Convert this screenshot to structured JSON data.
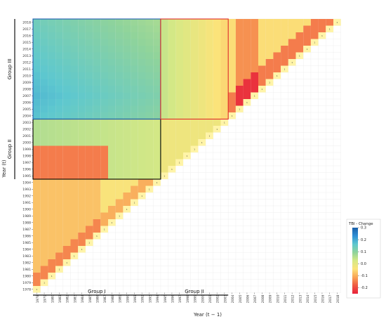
{
  "chart_data": {
    "type": "heatmap",
    "title": "",
    "xlabel": "Year (t − 1)",
    "ylabel": "Year (t)",
    "x_years": [
      1978,
      1979,
      1980,
      1981,
      1982,
      1983,
      1984,
      1985,
      1986,
      1987,
      1988,
      1989,
      1990,
      1991,
      1992,
      1993,
      1994,
      1995,
      1996,
      1997,
      1998,
      1999,
      2000,
      2001,
      2002,
      2003,
      2004,
      2005,
      2006,
      2007,
      2008,
      2009,
      2010,
      2011,
      2012,
      2013,
      2014,
      2015,
      2016,
      2017,
      2018
    ],
    "y_years": [
      2018,
      2017,
      2016,
      2015,
      2014,
      2013,
      2012,
      2011,
      2010,
      2009,
      2008,
      2007,
      2006,
      2005,
      2004,
      2003,
      2002,
      2001,
      2000,
      1999,
      1998,
      1997,
      1996,
      1995,
      1994,
      1993,
      1992,
      1991,
      1990,
      1989,
      1988,
      1987,
      1986,
      1985,
      1984,
      1983,
      1982,
      1981,
      1980,
      1979,
      1978
    ],
    "x_tick_labels": [
      "1978",
      "1979",
      "1980",
      "1981",
      "1982",
      "1983",
      "1984",
      "1985",
      "1986",
      "1987",
      "1988",
      "1989",
      "1990",
      "1991",
      "1992",
      "1993",
      "1994",
      "1995",
      "1996",
      "1997",
      "1998",
      "1999",
      "2000",
      "2001",
      "2002",
      "2003",
      "2004",
      "2005",
      "2006",
      "2007",
      "2008",
      "2009",
      "2010",
      "2011",
      "2012",
      "2013",
      "2014",
      "2015",
      "2016",
      "2017",
      "2018"
    ],
    "y_tick_labels": [
      "2018",
      "2017",
      "2016",
      "2015",
      "2014",
      "2013",
      "2012",
      "2011",
      "2010",
      "2009",
      "2008",
      "2007",
      "2006",
      "2005",
      "2004",
      "2003",
      "2002",
      "2001",
      "2000",
      "1999",
      "1998",
      "1997",
      "1996",
      "1995",
      "1994",
      "1993",
      "1992",
      "1991",
      "1990",
      "1989",
      "1988",
      "1987",
      "1986",
      "1985",
      "1984",
      "1983",
      "1982",
      "1981",
      "1980",
      "1979",
      "1978"
    ],
    "diagonal_value_label": "1",
    "legend": {
      "title": "TBI - Change",
      "placement": "right",
      "range": [
        -0.25,
        0.3
      ],
      "ticks": [
        "0.3",
        "0.2",
        "0.1",
        "0.0",
        "-0.1",
        "-0.2"
      ],
      "tick_values": [
        0.3,
        0.2,
        0.1,
        0.0,
        -0.1,
        -0.2
      ],
      "colors": [
        "#1a5fa8",
        "#2f8fd6",
        "#5ec8cf",
        "#8fd39b",
        "#d6e985",
        "#fbe37a",
        "#f9a456",
        "#ef5a43",
        "#e8213a"
      ]
    },
    "groups_y": [
      {
        "label": "Group III",
        "from": 2004,
        "to": 2018
      },
      {
        "label": "Group II",
        "from": 1995,
        "to": 2003
      }
    ],
    "groups_x": [
      {
        "label": "Group I",
        "from": 1978,
        "to": 1994
      },
      {
        "label": "Group II",
        "from": 1995,
        "to": 2003
      }
    ],
    "boxes": [
      {
        "label": "",
        "x_from": 1978,
        "x_to": 1994,
        "y_from": 1995,
        "y_to": 2003,
        "color": "#000000"
      },
      {
        "label": "",
        "x_from": 1978,
        "x_to": 1994,
        "y_from": 2004,
        "y_to": 2018,
        "color": "#1f5fb0"
      },
      {
        "label": "",
        "x_from": 1995,
        "x_to": 2003,
        "y_from": 2004,
        "y_to": 2018,
        "color": "#e02b2b"
      }
    ],
    "grid": true
  }
}
